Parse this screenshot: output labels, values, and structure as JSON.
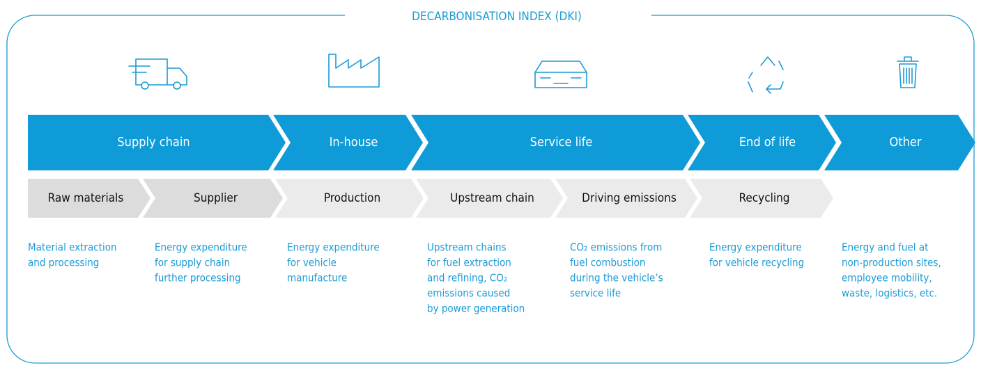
{
  "title": "DECARBONISATION INDEX (DKI)",
  "phases": [
    "Supply chain",
    "In-house",
    "Service life",
    "End of life",
    "Other"
  ],
  "stages": [
    "Raw materials",
    "Supplier",
    "Production",
    "Upstream chain",
    "Driving emissions",
    "Recycling"
  ],
  "descriptions": [
    [
      "Material extraction",
      "and processing"
    ],
    [
      "Energy expenditure",
      "for supply chain",
      "further processing"
    ],
    [
      "Energy expenditure",
      "for vehicle",
      "manufacture"
    ],
    [
      "Upstream chains",
      "for fuel extraction",
      "and refining, CO₂",
      "emissions caused",
      "by power generation"
    ],
    [
      "CO₂ emissions from",
      "fuel combustion",
      "during the vehicle’s",
      "service life"
    ],
    [
      "Energy expenditure",
      "for vehicle recycling"
    ],
    [
      "Energy and fuel at",
      "non-production sites,",
      "employee mobility,",
      "waste, logistics, etc."
    ]
  ]
}
